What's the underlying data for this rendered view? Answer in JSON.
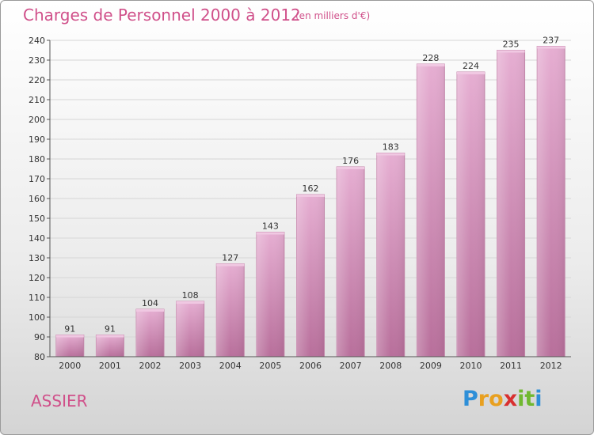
{
  "title": "Charges de Personnel 2000 à 2012",
  "subtitle": "(en milliers d'€)",
  "place": "ASSIER",
  "logo": {
    "letters": [
      "P",
      "r",
      "o",
      "x",
      "i",
      "t",
      "i"
    ],
    "colors": [
      "#2e8fd8",
      "#e8a020",
      "#e8a020",
      "#d83030",
      "#70b830",
      "#70b830",
      "#2e8fd8"
    ]
  },
  "colors": {
    "bar": "#d58fbb",
    "bar_top": "#e8b4d6",
    "bar_bottom": "#b86f9b",
    "title": "#d0508a"
  },
  "chart_data": {
    "type": "bar",
    "title": "Charges de Personnel 2000 à 2012",
    "subtitle": "(en milliers d'€)",
    "categories": [
      "2000",
      "2001",
      "2002",
      "2003",
      "2004",
      "2005",
      "2006",
      "2007",
      "2008",
      "2009",
      "2010",
      "2011",
      "2012"
    ],
    "values": [
      91,
      91,
      104,
      108,
      127,
      143,
      162,
      176,
      183,
      228,
      224,
      235,
      237
    ],
    "ylim": [
      80,
      240
    ],
    "yticks": [
      80,
      90,
      100,
      110,
      120,
      130,
      140,
      150,
      160,
      170,
      180,
      190,
      200,
      210,
      220,
      230,
      240
    ],
    "xlabel": "",
    "ylabel": "",
    "grid": true
  }
}
